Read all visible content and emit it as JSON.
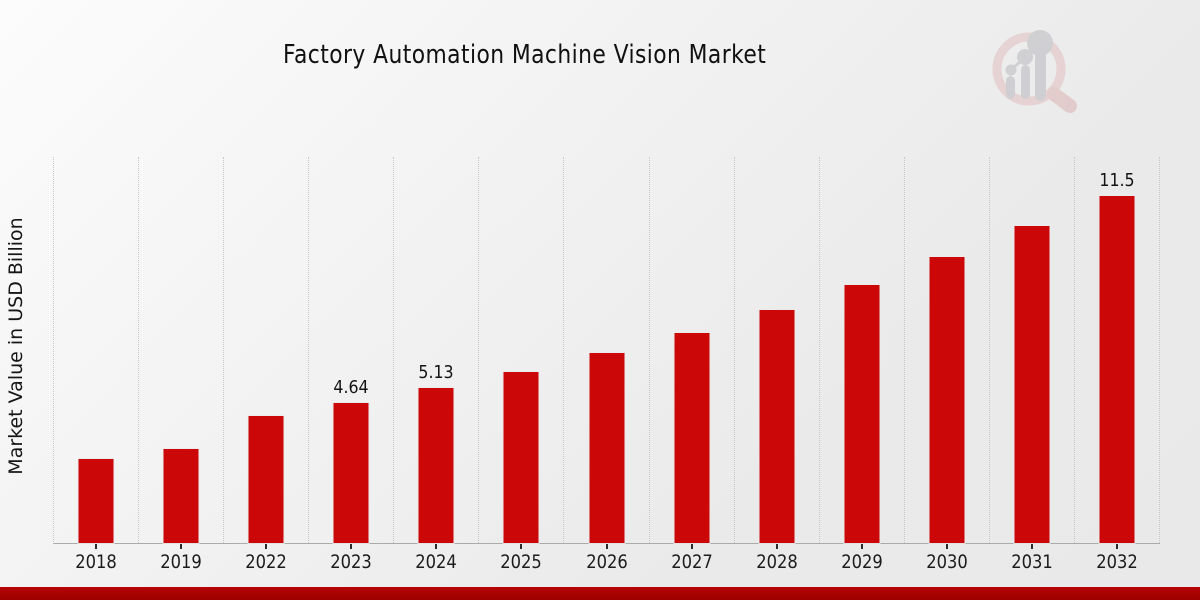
{
  "chart_data": {
    "type": "bar",
    "title": "Factory Automation Machine Vision Market",
    "xlabel": "",
    "ylabel": "Market Value in USD Billion",
    "categories": [
      "2018",
      "2019",
      "2022",
      "2023",
      "2024",
      "2025",
      "2026",
      "2027",
      "2028",
      "2029",
      "2030",
      "2031",
      "2032"
    ],
    "values": [
      2.79,
      3.13,
      4.21,
      4.64,
      5.13,
      5.67,
      6.3,
      6.98,
      7.73,
      8.56,
      9.48,
      10.5,
      11.5
    ],
    "data_labels": {
      "2023": "4.64",
      "2024": "5.13",
      "2032": "11.5"
    },
    "ylim": [
      0,
      12.8
    ],
    "grid": "vertical dotted separators between categories",
    "legend_position": "none",
    "bar_color": "#cb0707",
    "label_color": "#141414"
  },
  "branding": {
    "logo_icon": "magnifier-bar-chart",
    "footer_color": "#b70404",
    "logo_ring_color": "#e2bebe",
    "logo_handle_color": "#dcb2b2",
    "logo_bar_color": "#b9b9bf"
  }
}
